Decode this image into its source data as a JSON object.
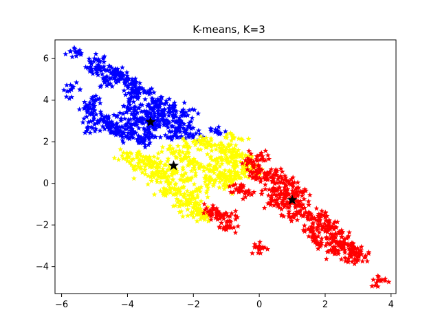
{
  "chart_data": {
    "type": "scatter",
    "title": "K-means, K=3",
    "xlabel": "",
    "ylabel": "",
    "xlim": [
      -6.2,
      4.15
    ],
    "ylim": [
      -5.3,
      6.9
    ],
    "xticks": [
      -6,
      -4,
      -2,
      0,
      2,
      4
    ],
    "yticks": [
      -4,
      -2,
      0,
      2,
      4,
      6
    ],
    "xtick_labels": [
      "−6",
      "−4",
      "−2",
      "0",
      "2",
      "4"
    ],
    "ytick_labels": [
      "−4",
      "−2",
      "0",
      "2",
      "4",
      "6"
    ],
    "grid": false,
    "marker": "star",
    "series": [
      {
        "color": "#0000ff",
        "values": [
          [
            -5.55,
            6.3
          ],
          [
            -4.9,
            5.9
          ],
          [
            -4.95,
            5.6
          ],
          [
            -4.8,
            5.4
          ],
          [
            -4.5,
            5.3
          ],
          [
            -4.2,
            5.1
          ],
          [
            -4.0,
            4.9
          ],
          [
            -3.8,
            4.7
          ],
          [
            -3.5,
            4.4
          ],
          [
            -3.2,
            3.9
          ],
          [
            -2.9,
            3.5
          ],
          [
            -2.6,
            3.2
          ],
          [
            -2.4,
            2.9
          ],
          [
            -2.2,
            2.6
          ],
          [
            -2.0,
            2.3
          ],
          [
            -2.3,
            3.4
          ],
          [
            -2.6,
            3.6
          ],
          [
            -3.0,
            4.0
          ],
          [
            -4.3,
            5.2
          ],
          [
            -3.7,
            4.5
          ],
          [
            -5.7,
            4.5
          ],
          [
            -5.2,
            3.6
          ],
          [
            -5.1,
            3.4
          ],
          [
            -5.0,
            3.9
          ],
          [
            -4.8,
            3.1
          ],
          [
            -4.6,
            2.9
          ],
          [
            -4.5,
            2.7
          ],
          [
            -4.3,
            2.5
          ],
          [
            -4.0,
            2.3
          ],
          [
            -3.7,
            2.1
          ],
          [
            -3.5,
            2.0
          ],
          [
            -3.3,
            2.4
          ],
          [
            -3.2,
            2.7
          ],
          [
            -3.1,
            3.0
          ],
          [
            -3.4,
            3.2
          ],
          [
            -3.7,
            3.4
          ],
          [
            -4.0,
            3.6
          ],
          [
            -4.2,
            3.1
          ],
          [
            -4.4,
            2.4
          ],
          [
            -5.1,
            2.7
          ],
          [
            -3.6,
            3.0
          ],
          [
            -3.9,
            4.1
          ],
          [
            -2.8,
            2.8
          ],
          [
            -2.5,
            2.5
          ],
          [
            -1.3,
            2.5
          ],
          [
            -3.3,
            3.6
          ],
          [
            -4.6,
            4.9
          ],
          [
            -3.0,
            3.3
          ],
          [
            -2.7,
            2.2
          ],
          [
            -3.9,
            2.8
          ]
        ]
      },
      {
        "color": "#ffff00",
        "values": [
          [
            -4.0,
            1.4
          ],
          [
            -3.7,
            1.3
          ],
          [
            -3.5,
            1.1
          ],
          [
            -3.3,
            0.9
          ],
          [
            -3.1,
            0.6
          ],
          [
            -2.9,
            0.3
          ],
          [
            -2.7,
            0.0
          ],
          [
            -2.5,
            -0.3
          ],
          [
            -2.3,
            -0.6
          ],
          [
            -2.1,
            -0.9
          ],
          [
            -1.9,
            -1.2
          ],
          [
            -1.7,
            -1.5
          ],
          [
            -2.6,
            1.5
          ],
          [
            -2.3,
            1.2
          ],
          [
            -2.0,
            1.0
          ],
          [
            -1.7,
            0.8
          ],
          [
            -1.4,
            0.6
          ],
          [
            -1.1,
            0.4
          ],
          [
            -0.9,
            0.2
          ],
          [
            -2.2,
            1.8
          ],
          [
            -1.8,
            2.0
          ],
          [
            -1.5,
            1.9
          ],
          [
            -1.2,
            1.7
          ],
          [
            -0.9,
            1.6
          ],
          [
            -0.6,
            1.3
          ],
          [
            -0.3,
            1.1
          ],
          [
            -0.2,
            0.8
          ],
          [
            -0.4,
            0.6
          ],
          [
            -0.7,
            0.9
          ],
          [
            -1.0,
            1.2
          ],
          [
            -3.6,
            0.7
          ],
          [
            -3.2,
            0.3
          ],
          [
            -2.8,
            -0.5
          ],
          [
            -2.4,
            -1.0
          ],
          [
            -2.0,
            -1.4
          ],
          [
            -1.8,
            -0.4
          ],
          [
            -1.5,
            0.1
          ],
          [
            -1.3,
            1.1
          ],
          [
            -2.5,
            0.6
          ],
          [
            -3.0,
            1.0
          ],
          [
            -1.0,
            -0.1
          ],
          [
            -0.6,
            0.3
          ],
          [
            -1.7,
            -1.6
          ],
          [
            -2.2,
            0.2
          ],
          [
            -0.8,
            2.2
          ]
        ]
      },
      {
        "color": "#ff0000",
        "values": [
          [
            -0.3,
            1.0
          ],
          [
            0.0,
            0.7
          ],
          [
            0.2,
            0.4
          ],
          [
            0.4,
            0.1
          ],
          [
            0.6,
            -0.2
          ],
          [
            0.8,
            -0.5
          ],
          [
            1.0,
            -0.8
          ],
          [
            1.2,
            -1.1
          ],
          [
            1.4,
            -1.4
          ],
          [
            1.6,
            -1.7
          ],
          [
            1.8,
            -2.0
          ],
          [
            2.0,
            -2.3
          ],
          [
            2.2,
            -2.6
          ],
          [
            2.4,
            -2.9
          ],
          [
            2.6,
            -3.2
          ],
          [
            2.8,
            -3.5
          ],
          [
            3.0,
            -3.7
          ],
          [
            0.1,
            1.3
          ],
          [
            -0.2,
            0.3
          ],
          [
            -0.6,
            -0.2
          ],
          [
            -0.4,
            -0.4
          ],
          [
            0.3,
            -0.3
          ],
          [
            0.5,
            0.4
          ],
          [
            0.9,
            0.1
          ],
          [
            1.1,
            -0.3
          ],
          [
            1.3,
            -0.6
          ],
          [
            0.7,
            -1.0
          ],
          [
            1.5,
            -2.2
          ],
          [
            1.9,
            -1.5
          ],
          [
            2.1,
            -1.9
          ],
          [
            2.5,
            -2.4
          ],
          [
            2.3,
            -3.3
          ],
          [
            1.7,
            -2.6
          ],
          [
            2.7,
            -3.0
          ],
          [
            0.0,
            -3.1
          ],
          [
            3.7,
            -4.7
          ],
          [
            -1.3,
            -1.4
          ],
          [
            -1.1,
            -1.5
          ],
          [
            -1.0,
            -2.1
          ],
          [
            -0.9,
            -1.8
          ],
          [
            -1.5,
            -1.3
          ],
          [
            0.9,
            -1.6
          ],
          [
            1.8,
            -2.9
          ],
          [
            0.4,
            -0.8
          ],
          [
            2.9,
            -3.3
          ]
        ]
      },
      {
        "color": "#000000",
        "role": "centroids",
        "values": [
          [
            -3.3,
            2.95
          ],
          [
            -2.6,
            0.85
          ],
          [
            1.0,
            -0.8
          ]
        ]
      }
    ]
  }
}
